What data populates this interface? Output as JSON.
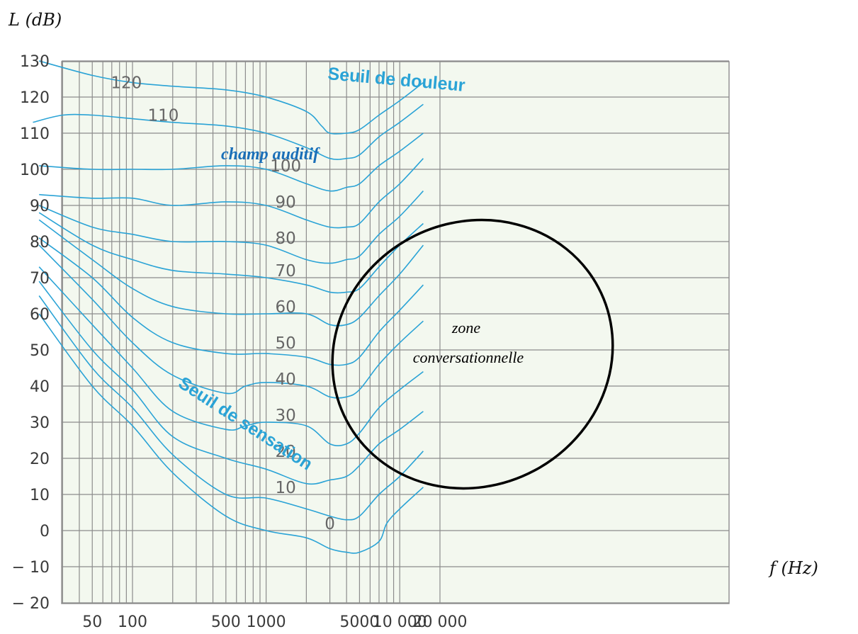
{
  "chart_data": {
    "type": "line",
    "title": "",
    "ylabel": "L (dB)",
    "xlabel": "f (Hz)",
    "x_scale": "log",
    "xlim": [
      18,
      25000
    ],
    "ylim": [
      -20,
      130
    ],
    "yticks": [
      130,
      120,
      110,
      100,
      90,
      80,
      70,
      60,
      50,
      40,
      30,
      20,
      10,
      0,
      -10,
      -20
    ],
    "ytick_labels": [
      "130",
      "120",
      "110",
      "100",
      "90",
      "80",
      "70",
      "60",
      "50",
      "40",
      "30",
      "20",
      "10",
      "0",
      "− 10",
      "− 20"
    ],
    "xticks": [
      50,
      100,
      500,
      1000,
      5000,
      10000,
      20000
    ],
    "xtick_labels": [
      "50",
      "100",
      "500",
      "1000",
      "5000",
      "10 000",
      "20 000"
    ],
    "grid_x": [
      20,
      30,
      40,
      50,
      60,
      70,
      80,
      90,
      100,
      200,
      300,
      400,
      500,
      600,
      700,
      800,
      900,
      1000,
      2000,
      3000,
      4000,
      5000,
      6000,
      7000,
      8000,
      9000,
      10000,
      20000
    ],
    "grid_y": [
      130,
      120,
      110,
      100,
      90,
      80,
      70,
      60,
      50,
      40,
      30,
      20,
      10,
      0,
      -10,
      -20
    ],
    "grid": true,
    "colors": {
      "curves": "#2aa3d6",
      "grid": "#8c8c8c",
      "plot_bg": "#f3f8ef",
      "ellipse": "#000000"
    },
    "series": [
      {
        "name": "0",
        "label_at": [
          3000,
          2
        ],
        "points": [
          [
            20,
            60
          ],
          [
            50,
            40
          ],
          [
            100,
            29
          ],
          [
            200,
            16
          ],
          [
            500,
            4
          ],
          [
            1000,
            0
          ],
          [
            2000,
            -2
          ],
          [
            3000,
            -5
          ],
          [
            4000,
            -6
          ],
          [
            5000,
            -6
          ],
          [
            7000,
            -3
          ],
          [
            8000,
            2
          ],
          [
            10000,
            6
          ],
          [
            15000,
            12
          ]
        ]
      },
      {
        "name": "10",
        "label_at": [
          1400,
          12
        ],
        "points": [
          [
            20,
            65
          ],
          [
            50,
            45
          ],
          [
            100,
            34
          ],
          [
            200,
            21
          ],
          [
            500,
            10
          ],
          [
            1000,
            9
          ],
          [
            2000,
            6
          ],
          [
            3000,
            4
          ],
          [
            4000,
            3
          ],
          [
            5000,
            4
          ],
          [
            7000,
            10
          ],
          [
            10000,
            15
          ],
          [
            15000,
            22
          ]
        ]
      },
      {
        "name": "20",
        "label_at": [
          1400,
          22
        ],
        "points": [
          [
            20,
            69
          ],
          [
            50,
            50
          ],
          [
            100,
            39
          ],
          [
            200,
            26
          ],
          [
            500,
            20
          ],
          [
            1000,
            17
          ],
          [
            2000,
            13
          ],
          [
            3000,
            14
          ],
          [
            4000,
            15
          ],
          [
            5000,
            18
          ],
          [
            7000,
            24
          ],
          [
            10000,
            28
          ],
          [
            15000,
            33
          ]
        ]
      },
      {
        "name": "30",
        "label_at": [
          1400,
          32
        ],
        "points": [
          [
            20,
            73
          ],
          [
            50,
            57
          ],
          [
            100,
            45
          ],
          [
            200,
            33
          ],
          [
            500,
            28
          ],
          [
            700,
            29
          ],
          [
            1000,
            30
          ],
          [
            2000,
            29
          ],
          [
            3000,
            24
          ],
          [
            4000,
            24
          ],
          [
            5000,
            27
          ],
          [
            7000,
            34
          ],
          [
            10000,
            39
          ],
          [
            15000,
            44
          ]
        ]
      },
      {
        "name": "40",
        "label_at": [
          1400,
          42
        ],
        "points": [
          [
            20,
            79
          ],
          [
            50,
            64
          ],
          [
            100,
            52
          ],
          [
            200,
            43
          ],
          [
            500,
            38
          ],
          [
            700,
            40
          ],
          [
            1000,
            41
          ],
          [
            2000,
            40
          ],
          [
            3000,
            37
          ],
          [
            4000,
            37
          ],
          [
            5000,
            39
          ],
          [
            7000,
            46
          ],
          [
            10000,
            52
          ],
          [
            15000,
            58
          ]
        ]
      },
      {
        "name": "50",
        "label_at": [
          1400,
          52
        ],
        "points": [
          [
            20,
            81
          ],
          [
            50,
            70
          ],
          [
            100,
            59
          ],
          [
            200,
            52
          ],
          [
            500,
            49
          ],
          [
            1000,
            49
          ],
          [
            2000,
            48
          ],
          [
            3000,
            46
          ],
          [
            4000,
            46
          ],
          [
            5000,
            48
          ],
          [
            7000,
            55
          ],
          [
            10000,
            61
          ],
          [
            15000,
            68
          ]
        ]
      },
      {
        "name": "60",
        "label_at": [
          1400,
          62
        ],
        "points": [
          [
            20,
            86
          ],
          [
            50,
            75
          ],
          [
            100,
            67
          ],
          [
            200,
            62
          ],
          [
            500,
            60
          ],
          [
            1000,
            60
          ],
          [
            2000,
            60
          ],
          [
            3000,
            57
          ],
          [
            4000,
            57
          ],
          [
            5000,
            59
          ],
          [
            7000,
            65
          ],
          [
            10000,
            71
          ],
          [
            15000,
            79
          ]
        ]
      },
      {
        "name": "70",
        "label_at": [
          1400,
          72
        ],
        "points": [
          [
            20,
            88
          ],
          [
            50,
            79
          ],
          [
            100,
            75
          ],
          [
            200,
            72
          ],
          [
            500,
            71
          ],
          [
            1000,
            70
          ],
          [
            2000,
            68
          ],
          [
            3000,
            66
          ],
          [
            4000,
            66
          ],
          [
            5000,
            67
          ],
          [
            7000,
            73
          ],
          [
            10000,
            79
          ],
          [
            15000,
            85
          ]
        ]
      },
      {
        "name": "80",
        "label_at": [
          1400,
          81
        ],
        "points": [
          [
            20,
            90
          ],
          [
            50,
            84
          ],
          [
            100,
            82
          ],
          [
            200,
            80
          ],
          [
            500,
            80
          ],
          [
            1000,
            79
          ],
          [
            2000,
            75
          ],
          [
            3000,
            74
          ],
          [
            4000,
            75
          ],
          [
            5000,
            76
          ],
          [
            7000,
            82
          ],
          [
            10000,
            87
          ],
          [
            15000,
            94
          ]
        ]
      },
      {
        "name": "90",
        "label_at": [
          1400,
          91
        ],
        "points": [
          [
            20,
            93
          ],
          [
            50,
            92
          ],
          [
            100,
            92
          ],
          [
            200,
            90
          ],
          [
            500,
            91
          ],
          [
            1000,
            90
          ],
          [
            2000,
            86
          ],
          [
            3000,
            84
          ],
          [
            4000,
            84
          ],
          [
            5000,
            85
          ],
          [
            7000,
            91
          ],
          [
            10000,
            96
          ],
          [
            15000,
            103
          ]
        ]
      },
      {
        "name": "100",
        "label_at": [
          1400,
          101
        ],
        "points": [
          [
            20,
            101
          ],
          [
            50,
            100
          ],
          [
            100,
            100
          ],
          [
            200,
            100
          ],
          [
            500,
            101
          ],
          [
            1000,
            100
          ],
          [
            2000,
            96
          ],
          [
            3000,
            94
          ],
          [
            4000,
            95
          ],
          [
            5000,
            96
          ],
          [
            7000,
            101
          ],
          [
            10000,
            105
          ],
          [
            15000,
            110
          ]
        ]
      },
      {
        "name": "110",
        "label_at": [
          170,
          115
        ],
        "points": [
          [
            18,
            113
          ],
          [
            30,
            115
          ],
          [
            50,
            115
          ],
          [
            100,
            114
          ],
          [
            200,
            113
          ],
          [
            500,
            112
          ],
          [
            1000,
            110
          ],
          [
            2000,
            106
          ],
          [
            3000,
            103
          ],
          [
            4000,
            103
          ],
          [
            5000,
            104
          ],
          [
            7000,
            109
          ],
          [
            10000,
            113
          ],
          [
            15000,
            118
          ]
        ]
      },
      {
        "name": "120",
        "label_at": [
          90,
          124
        ],
        "points": [
          [
            20,
            130
          ],
          [
            50,
            126
          ],
          [
            100,
            124
          ],
          [
            200,
            123
          ],
          [
            500,
            122
          ],
          [
            1000,
            120
          ],
          [
            2000,
            116
          ],
          [
            2600,
            112
          ],
          [
            3000,
            110
          ],
          [
            4000,
            110
          ],
          [
            5000,
            111
          ],
          [
            7000,
            115
          ],
          [
            10000,
            119
          ],
          [
            15000,
            124
          ]
        ]
      }
    ],
    "annotations": {
      "pain_threshold": "Seuil de douleur",
      "sensation_threshold": "Seuil de sensation",
      "hearing_field": "champ auditif",
      "zone_line1": "zone",
      "zone_line2": "conversationnelle"
    }
  }
}
